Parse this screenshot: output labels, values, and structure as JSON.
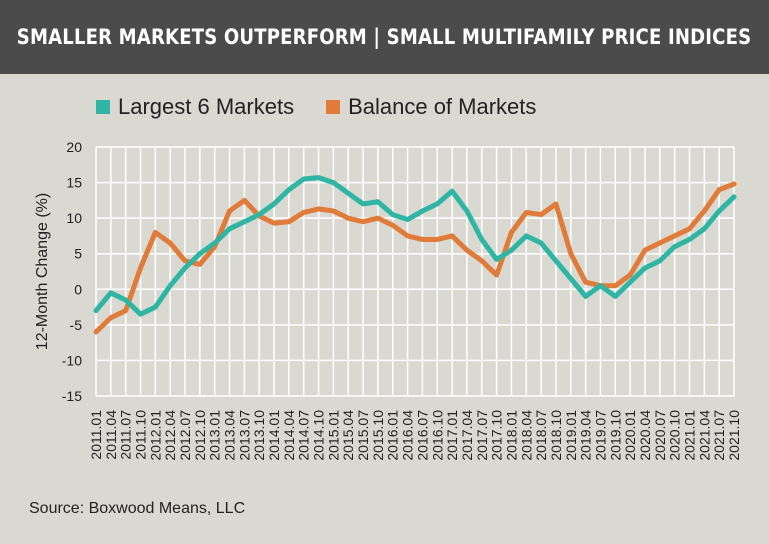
{
  "header": {
    "title": "SMALLER MARKETS OUTPERFORM | SMALL MULTIFAMILY PRICE INDICES"
  },
  "source": "Source: Boxwood Means, LLC",
  "chart_data": {
    "type": "line",
    "title": "SMALLER MARKETS OUTPERFORM | SMALL MULTIFAMILY PRICE INDICES",
    "xlabel": "",
    "ylabel": "12-Month Change (%)",
    "ylim": [
      -15,
      20
    ],
    "yticks": [
      20,
      15,
      10,
      5,
      0,
      -5,
      -10,
      -15
    ],
    "grid": true,
    "legend_placement": "top",
    "x": [
      "2011.01",
      "2011.04",
      "2011.07",
      "2011.10",
      "2012.01",
      "2012.04",
      "2012.07",
      "2012.10",
      "2013.01",
      "2013.04",
      "2013.07",
      "2013.10",
      "2014.01",
      "2014.04",
      "2014.07",
      "2014.10",
      "2015.01",
      "2015.04",
      "2015.07",
      "2015.10",
      "2016.01",
      "2016.04",
      "2016.07",
      "2016.10",
      "2017.01",
      "2017.04",
      "2017.07",
      "2017.10",
      "2018.01",
      "2018.04",
      "2018.07",
      "2018.10",
      "2019.01",
      "2019.04",
      "2019.07",
      "2019.10",
      "2020.01",
      "2020.04",
      "2020.07",
      "2020.10",
      "2021.01",
      "2021.04",
      "2021.07",
      "2021.10"
    ],
    "series": [
      {
        "name": "Largest 6 Markets",
        "color": "#2fb5a3",
        "values": [
          -3,
          -0.5,
          -1.5,
          -3.5,
          -2.5,
          0.5,
          3,
          5,
          6.5,
          8.5,
          9.5,
          10.5,
          12,
          14,
          15.5,
          15.7,
          15,
          13.5,
          12,
          12.3,
          10.5,
          9.8,
          11,
          12,
          13.8,
          11,
          7,
          4.2,
          5.5,
          7.5,
          6.5,
          4,
          1.5,
          -1,
          0.5,
          -1,
          1,
          3,
          4,
          6,
          7,
          8.5,
          11,
          13
        ]
      },
      {
        "name": "Balance of Markets",
        "color": "#e07b39",
        "values": [
          -6,
          -4,
          -3,
          3,
          8,
          6.5,
          4,
          3.5,
          6,
          11,
          12.5,
          10.3,
          9.3,
          9.5,
          10.8,
          11.3,
          11,
          10,
          9.5,
          10,
          9,
          7.5,
          7,
          7,
          7.5,
          5.5,
          4,
          2,
          8,
          10.8,
          10.5,
          12,
          5,
          1,
          0.5,
          0.5,
          2,
          5.5,
          6.5,
          7.5,
          8.5,
          11,
          14,
          14.8
        ]
      }
    ]
  }
}
